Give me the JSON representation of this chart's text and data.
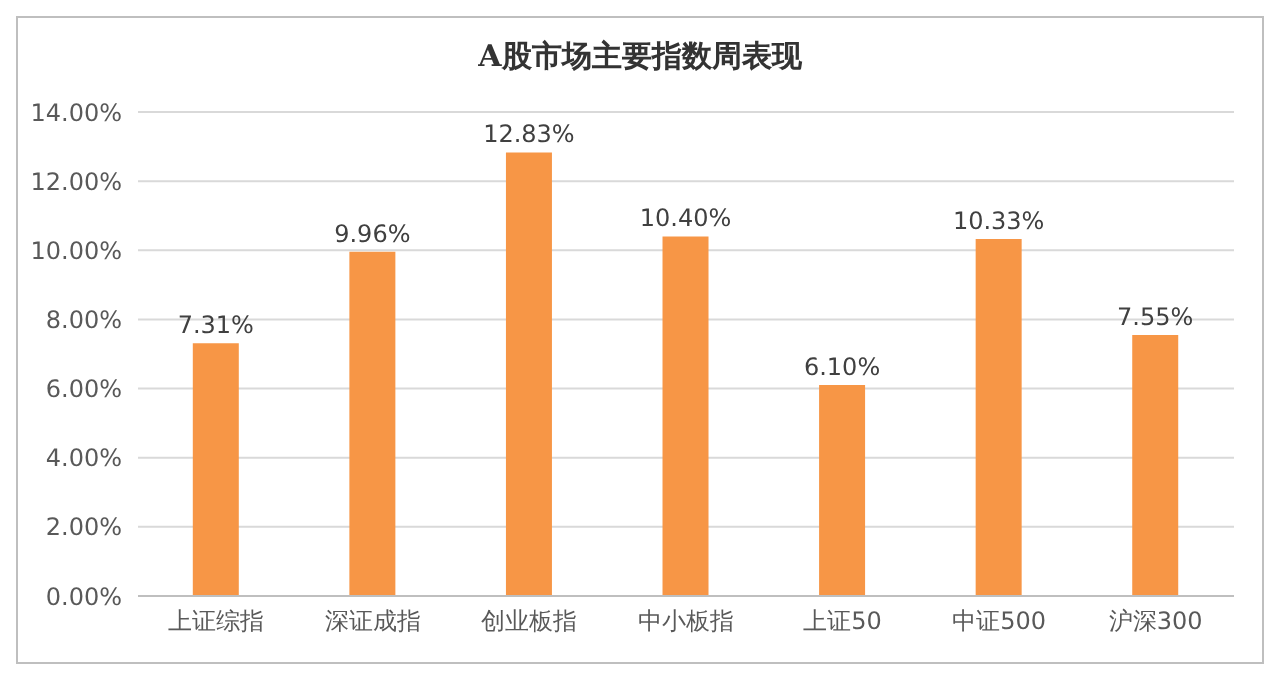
{
  "chart_data": {
    "type": "bar",
    "title": "A股市场主要指数周表现",
    "categories": [
      "上证综指",
      "深证成指",
      "创业板指",
      "中小板指",
      "上证50",
      "中证500",
      "沪深300"
    ],
    "values": [
      7.31,
      9.96,
      12.83,
      10.4,
      6.1,
      10.33,
      7.55
    ],
    "value_labels": [
      "7.31%",
      "9.96%",
      "12.83%",
      "10.40%",
      "6.10%",
      "10.33%",
      "7.55%"
    ],
    "color": "#f79646",
    "ylim": [
      0,
      14
    ],
    "yticks": [
      {
        "value": 0,
        "label": "0.00%"
      },
      {
        "value": 2,
        "label": "2.00%"
      },
      {
        "value": 4,
        "label": "4.00%"
      },
      {
        "value": 6,
        "label": "6.00%"
      },
      {
        "value": 8,
        "label": "8.00%"
      },
      {
        "value": 10,
        "label": "10.00%"
      },
      {
        "value": 12,
        "label": "12.00%"
      },
      {
        "value": 14,
        "label": "14.00%"
      }
    ],
    "grid": "y"
  }
}
